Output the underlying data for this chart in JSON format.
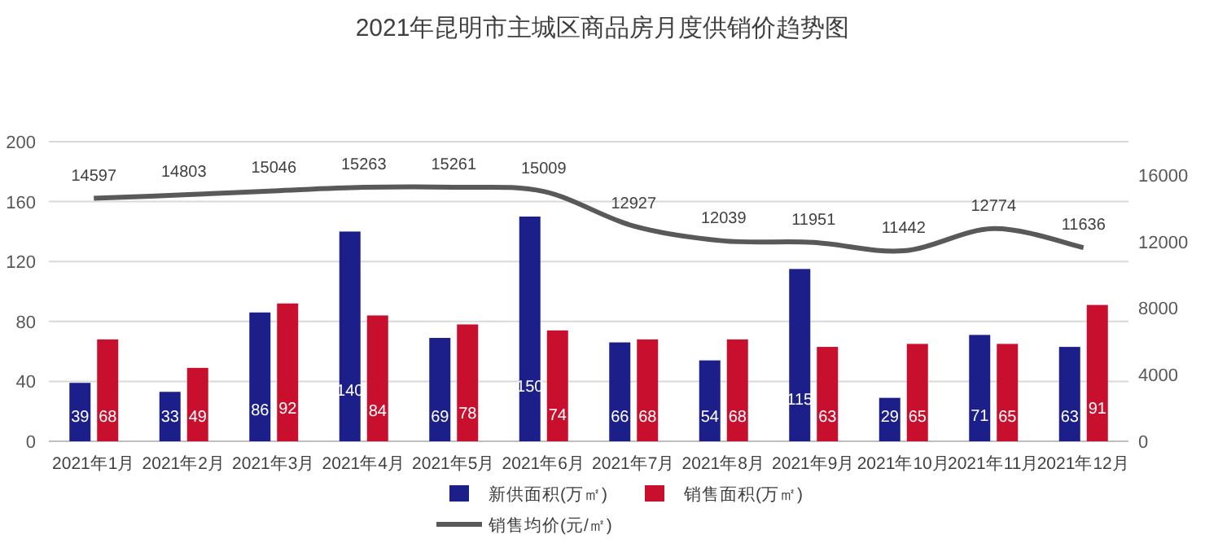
{
  "chart_data": {
    "type": "bar",
    "title": "2021年昆明市主城区商品房月度供销价趋势图",
    "categories": [
      "2021年1月",
      "2021年2月",
      "2021年3月",
      "2021年4月",
      "2021年5月",
      "2021年6月",
      "2021年7月",
      "2021年8月",
      "2021年9月",
      "2021年10月",
      "2021年11月",
      "2021年12月"
    ],
    "series": [
      {
        "name": "新供面积(万㎡)",
        "color": "#1c1f8a",
        "values": [
          39,
          33,
          86,
          140,
          69,
          150,
          66,
          54,
          115,
          29,
          71,
          63
        ]
      },
      {
        "name": "销售面积(万㎡)",
        "color": "#c8102e",
        "values": [
          68,
          49,
          92,
          84,
          78,
          74,
          68,
          68,
          63,
          65,
          65,
          91
        ]
      },
      {
        "name": "销售均价(元/㎡)",
        "type": "line",
        "axis": "y2",
        "color": "#595959",
        "values": [
          14597,
          14803,
          15046,
          15263,
          15261,
          15009,
          12927,
          12039,
          11951,
          11442,
          12774,
          11636
        ]
      }
    ],
    "ylim": [
      0,
      200
    ],
    "yticks": [
      0,
      40,
      80,
      120,
      160,
      200
    ],
    "y2lim": [
      0,
      18000
    ],
    "y2ticks": [
      0,
      4000,
      8000,
      12000,
      16000
    ],
    "grid": "y",
    "legend": "bottom",
    "data_labels": true
  }
}
